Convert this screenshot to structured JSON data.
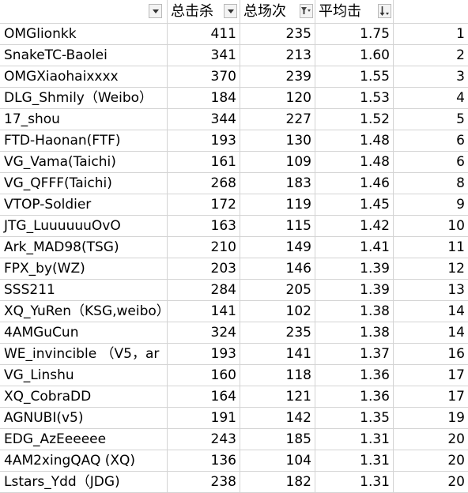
{
  "headers": {
    "col1": "",
    "total_kills": "总击杀",
    "total_games": "总场次",
    "avg_kills": "平均击"
  },
  "filters": {
    "total_games": "filter-active",
    "avg_kills": "sort-descending"
  },
  "rows": [
    {
      "name": "OMGlionkk",
      "kills": "411",
      "games": "235",
      "avg": "1.75",
      "rank": "1"
    },
    {
      "name": "SnakeTC-Baolei",
      "kills": "341",
      "games": "213",
      "avg": "1.60",
      "rank": "2"
    },
    {
      "name": "OMGXiaohaixxxx",
      "kills": "370",
      "games": "239",
      "avg": "1.55",
      "rank": "3"
    },
    {
      "name": "DLG_Shmily（Weibo）",
      "kills": "184",
      "games": "120",
      "avg": "1.53",
      "rank": "4"
    },
    {
      "name": "17_shou",
      "kills": "344",
      "games": "227",
      "avg": "1.52",
      "rank": "5"
    },
    {
      "name": "FTD-Haonan(FTF)",
      "kills": "193",
      "games": "130",
      "avg": "1.48",
      "rank": "6"
    },
    {
      "name": "VG_Vama(Taichi)",
      "kills": "161",
      "games": "109",
      "avg": "1.48",
      "rank": "6"
    },
    {
      "name": "VG_QFFF(Taichi)",
      "kills": "268",
      "games": "183",
      "avg": "1.46",
      "rank": "8"
    },
    {
      "name": "VTOP-Soldier",
      "kills": "172",
      "games": "119",
      "avg": "1.45",
      "rank": "9"
    },
    {
      "name": "JTG_LuuuuuuOvO",
      "kills": "163",
      "games": "115",
      "avg": "1.42",
      "rank": "10"
    },
    {
      "name": "Ark_MAD98(TSG)",
      "kills": "210",
      "games": "149",
      "avg": "1.41",
      "rank": "11"
    },
    {
      "name": "FPX_by(WZ)",
      "kills": "203",
      "games": "146",
      "avg": "1.39",
      "rank": "12"
    },
    {
      "name": "SSS211",
      "kills": "284",
      "games": "205",
      "avg": "1.39",
      "rank": "13"
    },
    {
      "name": "XQ_YuRen（KSG,weibo）",
      "kills": "141",
      "games": "102",
      "avg": "1.38",
      "rank": "14"
    },
    {
      "name": "4AMGuCun",
      "kills": "324",
      "games": "235",
      "avg": "1.38",
      "rank": "14"
    },
    {
      "name": "WE_invincible （V5，ar",
      "kills": "193",
      "games": "141",
      "avg": "1.37",
      "rank": "16"
    },
    {
      "name": "VG_Linshu",
      "kills": "160",
      "games": "118",
      "avg": "1.36",
      "rank": "17"
    },
    {
      "name": "XQ_CobraDD",
      "kills": "164",
      "games": "121",
      "avg": "1.36",
      "rank": "17"
    },
    {
      "name": "AGNUBI(v5)",
      "kills": "191",
      "games": "142",
      "avg": "1.35",
      "rank": "19"
    },
    {
      "name": "EDG_AzEeeeee",
      "kills": "243",
      "games": "185",
      "avg": "1.31",
      "rank": "20"
    },
    {
      "name": "4AM2xingQAQ (XQ)",
      "kills": "136",
      "games": "104",
      "avg": "1.31",
      "rank": "20"
    },
    {
      "name": "Lstars_Ydd（JDG)",
      "kills": "238",
      "games": "182",
      "avg": "1.31",
      "rank": "20"
    }
  ]
}
